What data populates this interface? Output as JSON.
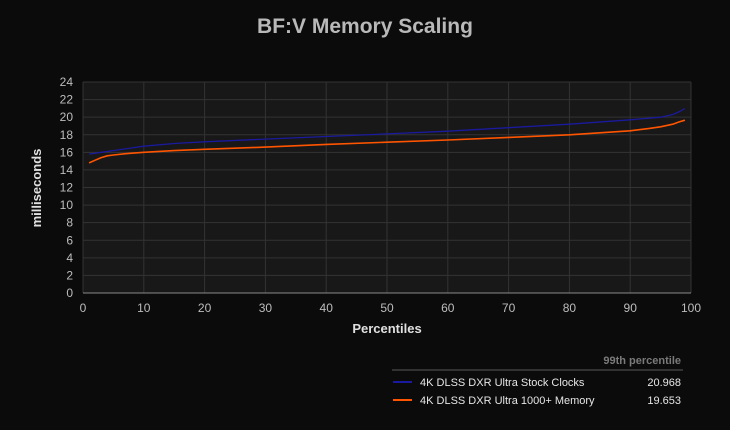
{
  "chart_data": {
    "type": "line",
    "title": "BF:V Memory Scaling",
    "xlabel": "Percentiles",
    "ylabel": "milliseconds",
    "xlim": [
      0,
      100
    ],
    "ylim": [
      0,
      24
    ],
    "xticks": [
      0,
      10,
      20,
      30,
      40,
      50,
      60,
      70,
      80,
      90,
      100
    ],
    "yticks": [
      0,
      2,
      4,
      6,
      8,
      10,
      12,
      14,
      16,
      18,
      20,
      22,
      24
    ],
    "grid": true,
    "legend": {
      "placement": "bottom-right",
      "header": "99th percentile"
    },
    "series": [
      {
        "name": "4K DLSS DXR Ultra Stock Clocks",
        "color": "#1a1a9e",
        "percentile_99": "20.968",
        "x": [
          1,
          3,
          5,
          10,
          15,
          20,
          30,
          40,
          50,
          60,
          70,
          80,
          90,
          95,
          97,
          98,
          99
        ],
        "y": [
          15.8,
          16.0,
          16.2,
          16.7,
          17.0,
          17.2,
          17.5,
          17.8,
          18.1,
          18.4,
          18.8,
          19.2,
          19.7,
          20.0,
          20.3,
          20.6,
          20.97
        ]
      },
      {
        "name": "4K DLSS DXR Ultra 1000+ Memory",
        "color": "#ff5500",
        "percentile_99": "19.653",
        "x": [
          1,
          2,
          3,
          4,
          5,
          7,
          10,
          15,
          20,
          30,
          40,
          50,
          60,
          70,
          80,
          90,
          93,
          95,
          97,
          98,
          99
        ],
        "y": [
          14.8,
          15.1,
          15.4,
          15.6,
          15.7,
          15.85,
          16.0,
          16.2,
          16.35,
          16.6,
          16.9,
          17.15,
          17.4,
          17.7,
          18.0,
          18.45,
          18.7,
          18.9,
          19.2,
          19.45,
          19.65
        ]
      }
    ]
  }
}
